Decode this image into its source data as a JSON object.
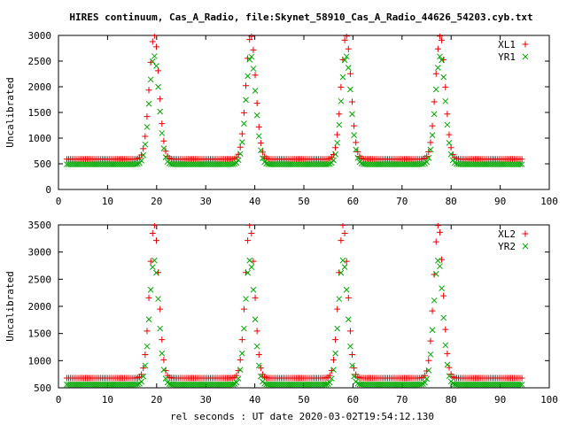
{
  "title": "HIRES continuum, Cas_A_Radio, file:Skynet_58910_Cas_A_Radio_44626_54203.cyb.txt",
  "xlabel": "rel seconds : UT date 2020-03-02T19:54:12.130",
  "colors": {
    "xl": "#e60000",
    "yr": "#00a800"
  },
  "chart_data": [
    {
      "type": "scatter",
      "title": "HIRES continuum, Cas_A_Radio, file:Skynet_58910_Cas_A_Radio_44626_54203.cyb.txt",
      "xlabel": "",
      "ylabel": "Uncalibrated",
      "xlim": [
        0,
        100
      ],
      "ylim": [
        0,
        3000
      ],
      "xticks": [
        0,
        10,
        20,
        30,
        40,
        50,
        60,
        70,
        80,
        90,
        100
      ],
      "yticks": [
        0,
        500,
        1000,
        1500,
        2000,
        2500,
        3000
      ],
      "grid": false,
      "legend": "top-right",
      "peaks": [
        19.5,
        39.2,
        58.6,
        77.8
      ],
      "series": [
        {
          "name": "XL1",
          "marker": "+",
          "color": "#e60000",
          "baseline": 590,
          "peak": 3000,
          "peak_width": 1.0
        },
        {
          "name": "YR1",
          "marker": "x",
          "color": "#00a800",
          "baseline": 490,
          "peak": 2600,
          "peak_width": 1.0
        }
      ],
      "x_start": 1.7,
      "x_end": 94.6,
      "x_step": 0.38
    },
    {
      "type": "scatter",
      "xlabel": "rel seconds : UT date 2020-03-02T19:54:12.130",
      "ylabel": "Uncalibrated",
      "xlim": [
        0,
        100
      ],
      "ylim": [
        500,
        3500
      ],
      "xticks": [
        0,
        10,
        20,
        30,
        40,
        50,
        60,
        70,
        80,
        90,
        100
      ],
      "yticks": [
        500,
        1000,
        1500,
        2000,
        2500,
        3000,
        3500
      ],
      "grid": false,
      "legend": "top-right",
      "peaks": [
        19.5,
        39.0,
        58.0,
        77.4
      ],
      "series": [
        {
          "name": "XL2",
          "marker": "+",
          "color": "#e60000",
          "baseline": 680,
          "peak": 3500,
          "peak_width": 0.95
        },
        {
          "name": "YR2",
          "marker": "x",
          "color": "#00a800",
          "baseline": 560,
          "peak": 2850,
          "peak_width": 0.95
        }
      ],
      "x_start": 1.7,
      "x_end": 94.6,
      "x_step": 0.38
    }
  ]
}
